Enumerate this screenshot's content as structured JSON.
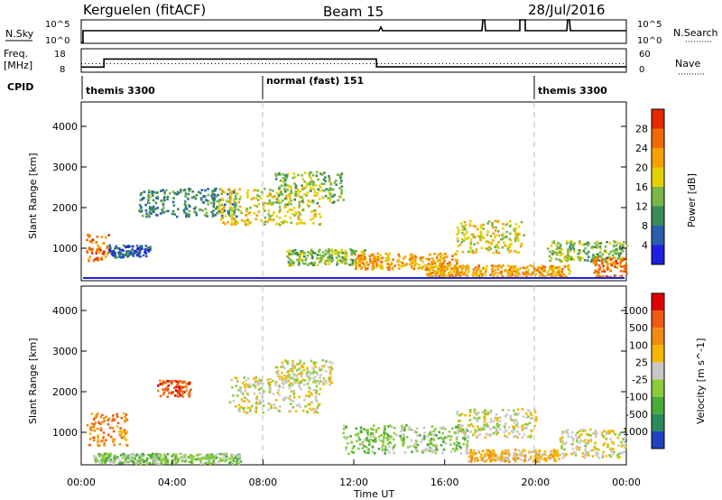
{
  "header": {
    "station": "Kerguelen (fitACF)",
    "beam": "Beam 15",
    "date": "28/Jul/2016"
  },
  "noise_panel": {
    "left_label": "N.Sky",
    "right_label": "N.Search",
    "left_ticks": [
      "10^5",
      "10^0"
    ],
    "right_ticks": [
      "10^5",
      "10^0"
    ]
  },
  "freq_panel": {
    "left_label_1": "Freq.",
    "left_label_2": "[MHz]",
    "right_label": "Nave",
    "left_ticks": [
      "18",
      "8"
    ],
    "right_ticks": [
      "60",
      "0"
    ],
    "freq_steps": [
      {
        "t0": 0,
        "t1": 1.0,
        "value": 10.2
      },
      {
        "t0": 1.0,
        "t1": 13.0,
        "value": 13.6
      },
      {
        "t0": 13.0,
        "t1": 24.0,
        "value": 10.3
      }
    ],
    "nave_level": 22
  },
  "cpid": {
    "label": "CPID",
    "segments": [
      {
        "t0": 0,
        "t1": 8,
        "text": "themis 3300"
      },
      {
        "t0": 8,
        "t1": 20,
        "text": "normal (fast) 151"
      },
      {
        "t0": 20,
        "t1": 24,
        "text": "themis 3300"
      }
    ]
  },
  "chart_data": [
    {
      "type": "heatmap",
      "name": "power",
      "ylabel": "Slant Range [km]",
      "ylim": [
        200,
        4600
      ],
      "yticks": [
        "1000",
        "2000",
        "3000",
        "4000"
      ],
      "colorbar_label": "Power [dB]",
      "colorbar_ticks": [
        "28",
        "24",
        "20",
        "16",
        "12",
        "8",
        "4"
      ],
      "colors": [
        "#1f1fe0",
        "#2a5faa",
        "#3b8a5a",
        "#7ab648",
        "#e5d000",
        "#f5a000",
        "#ef6a00",
        "#e22a00"
      ],
      "regions": [
        {
          "t0": 0.2,
          "t1": 1.2,
          "r0": 700,
          "r1": 1400,
          "level": 6
        },
        {
          "t0": 1.2,
          "t1": 3.0,
          "r0": 800,
          "r1": 1100,
          "level": 1
        },
        {
          "t0": 2.5,
          "t1": 6.8,
          "r0": 1800,
          "r1": 2500,
          "level": 2
        },
        {
          "t0": 6.0,
          "t1": 10.5,
          "r0": 1600,
          "r1": 2500,
          "level": 4
        },
        {
          "t0": 8.5,
          "t1": 11.5,
          "r0": 2100,
          "r1": 2900,
          "level": 3
        },
        {
          "t0": 9.0,
          "t1": 12.5,
          "r0": 600,
          "r1": 1000,
          "level": 3
        },
        {
          "t0": 12.0,
          "t1": 16.5,
          "r0": 500,
          "r1": 900,
          "level": 5
        },
        {
          "t0": 16.5,
          "t1": 19.5,
          "r0": 900,
          "r1": 1700,
          "level": 4
        },
        {
          "t0": 15.0,
          "t1": 21.5,
          "r0": 300,
          "r1": 600,
          "level": 5
        },
        {
          "t0": 20.5,
          "t1": 24.0,
          "r0": 700,
          "r1": 1200,
          "level": 3
        },
        {
          "t0": 22.5,
          "t1": 24.0,
          "r0": 300,
          "r1": 800,
          "level": 6
        }
      ]
    },
    {
      "type": "heatmap",
      "name": "velocity",
      "ylabel": "Slant Range [km]",
      "ylim": [
        200,
        4600
      ],
      "yticks": [
        "1000",
        "2000",
        "3000",
        "4000"
      ],
      "colorbar_label": "Velocity [m s^-1]",
      "colorbar_ticks": [
        "1000",
        "500",
        "100",
        "25",
        "-25",
        "-100",
        "-500",
        "-1000"
      ],
      "colors": [
        "#1f40c0",
        "#2a8a5a",
        "#4aaa3a",
        "#8acc3a",
        "#c8c8c8",
        "#f5b800",
        "#f08a10",
        "#ee5a10",
        "#e00000"
      ],
      "regions": [
        {
          "t0": 0.2,
          "t1": 2.0,
          "r0": 700,
          "r1": 1500,
          "level": 6
        },
        {
          "t0": 3.3,
          "t1": 4.8,
          "r0": 1900,
          "r1": 2300,
          "level": 7
        },
        {
          "t0": 6.5,
          "t1": 10.5,
          "r0": 1500,
          "r1": 2400,
          "level": 4
        },
        {
          "t0": 8.5,
          "t1": 11.0,
          "r0": 2200,
          "r1": 2800,
          "level": 4
        },
        {
          "t0": 11.5,
          "t1": 17.0,
          "r0": 500,
          "r1": 1200,
          "level": 3
        },
        {
          "t0": 16.5,
          "t1": 20.0,
          "r0": 900,
          "r1": 1600,
          "level": 4
        },
        {
          "t0": 17.0,
          "t1": 21.0,
          "r0": 300,
          "r1": 600,
          "level": 5
        },
        {
          "t0": 21.0,
          "t1": 24.0,
          "r0": 400,
          "r1": 1100,
          "level": 4
        },
        {
          "t0": 0.5,
          "t1": 7.0,
          "r0": 250,
          "r1": 500,
          "level": 3
        }
      ]
    }
  ],
  "xaxis": {
    "label": "Time UT",
    "ticks": [
      "00:00",
      "04:00",
      "08:00",
      "12:00",
      "16:00",
      "20:00",
      "00:00"
    ]
  }
}
